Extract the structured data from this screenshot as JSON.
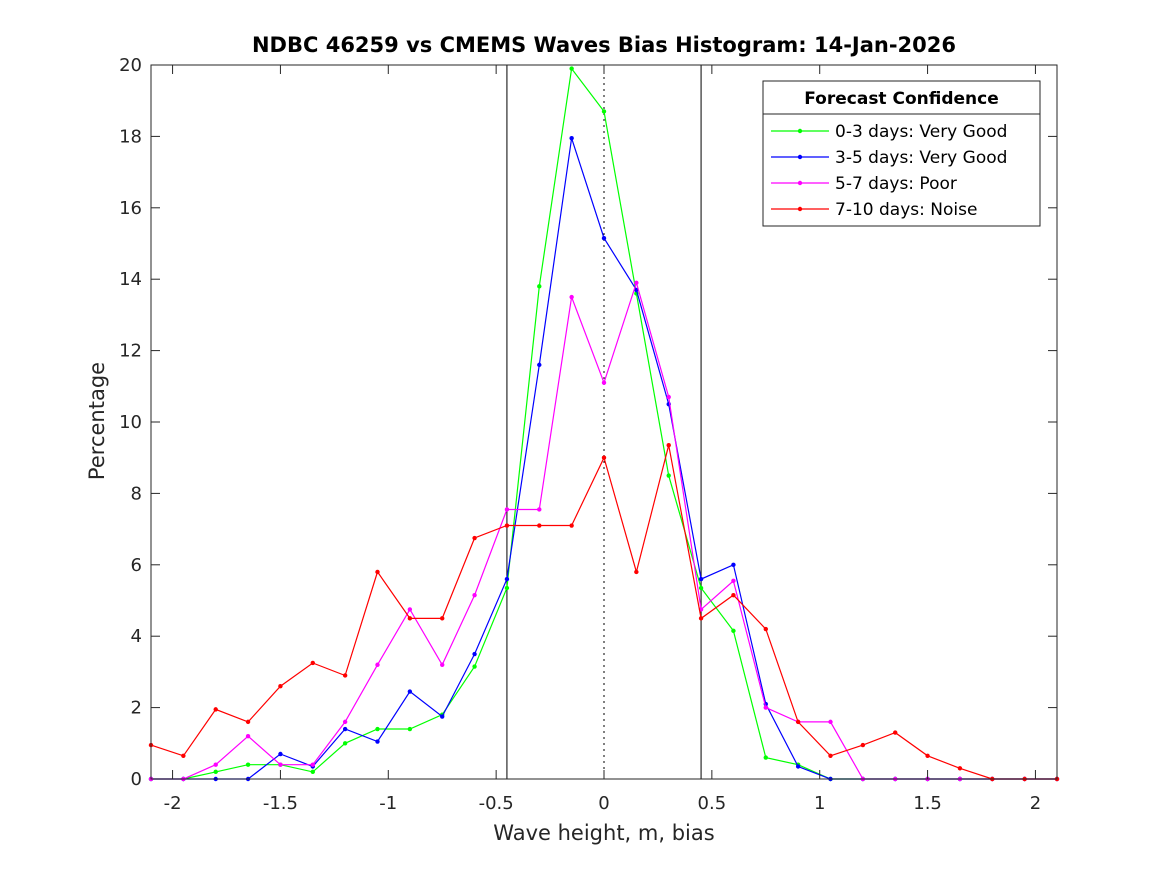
{
  "chart_data": {
    "type": "line",
    "title": "NDBC 46259 vs CMEMS Waves Bias Histogram: 14-Jan-2026",
    "xlabel": "Wave height, m, bias",
    "ylabel": "Percentage",
    "xlim": [
      -2.1,
      2.1
    ],
    "ylim": [
      0,
      20
    ],
    "xticks": [
      -2,
      -1.5,
      -1,
      -0.5,
      0,
      0.5,
      1,
      1.5,
      2
    ],
    "xtick_labels": [
      "-2",
      "-1.5",
      "-1",
      "-0.5",
      "0",
      "0.5",
      "1",
      "1.5",
      "2"
    ],
    "yticks": [
      0,
      2,
      4,
      6,
      8,
      10,
      12,
      14,
      16,
      18,
      20
    ],
    "ytick_labels": [
      "0",
      "2",
      "4",
      "6",
      "8",
      "10",
      "12",
      "14",
      "16",
      "18",
      "20"
    ],
    "vertical_lines": [
      {
        "x": -0.45,
        "style": "solid"
      },
      {
        "x": 0,
        "style": "dotted"
      },
      {
        "x": 0.45,
        "style": "solid"
      }
    ],
    "legend": {
      "title": "Forecast Confidence",
      "position": "top-right"
    },
    "x": [
      -2.1,
      -1.95,
      -1.8,
      -1.65,
      -1.5,
      -1.35,
      -1.2,
      -1.05,
      -0.9,
      -0.75,
      -0.6,
      -0.45,
      -0.3,
      -0.15,
      0,
      0.15,
      0.3,
      0.45,
      0.6,
      0.75,
      0.9,
      1.05,
      1.2,
      1.35,
      1.5,
      1.65,
      1.8,
      1.95,
      2.1
    ],
    "series": [
      {
        "name": "0-3 days: Very Good",
        "color": "#00ff00",
        "values": [
          0,
          0,
          0.2,
          0.4,
          0.4,
          0.2,
          1.0,
          1.4,
          1.4,
          1.8,
          3.15,
          5.35,
          13.8,
          19.9,
          18.7,
          13.6,
          8.5,
          5.35,
          4.15,
          0.6,
          0.4,
          0,
          0,
          0,
          0,
          0,
          0,
          0,
          0
        ]
      },
      {
        "name": "3-5 days: Very Good",
        "color": "#0000ff",
        "values": [
          0,
          0,
          0,
          0,
          0.7,
          0.35,
          1.4,
          1.05,
          2.45,
          1.75,
          3.5,
          5.6,
          11.6,
          17.95,
          15.15,
          13.7,
          10.5,
          5.6,
          6.0,
          2.1,
          0.35,
          0,
          0,
          0,
          0,
          0,
          0,
          0,
          0
        ]
      },
      {
        "name": "5-7 days: Poor",
        "color": "#ff00ff",
        "values": [
          0,
          0,
          0.4,
          1.2,
          0.4,
          0.4,
          1.6,
          3.2,
          4.75,
          3.2,
          5.15,
          7.55,
          7.55,
          13.5,
          11.1,
          13.9,
          10.7,
          4.75,
          5.55,
          2.0,
          1.6,
          1.6,
          0,
          0,
          0,
          0,
          0,
          0,
          0
        ]
      },
      {
        "name": "7-10 days: Noise",
        "color": "#ff0000",
        "values": [
          0.95,
          0.65,
          1.95,
          1.6,
          2.6,
          3.25,
          2.9,
          5.8,
          4.5,
          4.5,
          6.75,
          7.1,
          7.1,
          7.1,
          9.0,
          5.8,
          9.35,
          4.5,
          5.15,
          4.2,
          1.6,
          0.65,
          0.95,
          1.3,
          0.65,
          0.3,
          0,
          0,
          0
        ]
      }
    ]
  }
}
